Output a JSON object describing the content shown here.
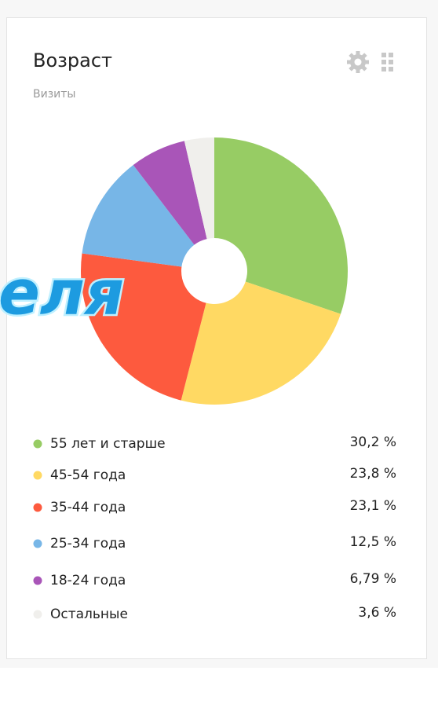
{
  "chart_data": {
    "type": "pie",
    "title": "Возраст",
    "subtitle": "Визиты",
    "categories": [
      "55 лет и старше",
      "45-54 года",
      "35-44 года",
      "25-34 года",
      "18-24 года",
      "Остальные"
    ],
    "values": [
      30.2,
      23.8,
      23.1,
      12.5,
      6.79,
      3.6
    ],
    "value_labels": [
      "30,2 %",
      "23,8 %",
      "23,1 %",
      "12,5 %",
      "6,79 %",
      "3,6 %"
    ],
    "colors": [
      "#97cc64",
      "#ffd963",
      "#fd5a3e",
      "#77b6e7",
      "#a955b8",
      "#f0efec"
    ],
    "annotation": "еля"
  }
}
